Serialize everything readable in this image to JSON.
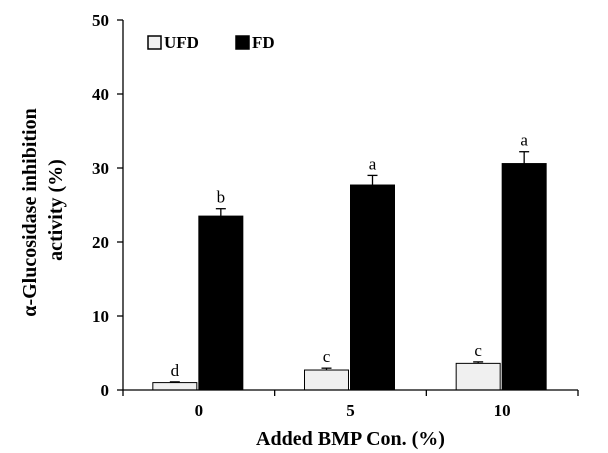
{
  "chart_data": {
    "type": "bar",
    "title": "",
    "xlabel": "Added BMP Con. (%)",
    "ylabel_line1": "α-Glucosidase inhibition",
    "ylabel_line2": "activity (%)",
    "ylim": [
      0,
      50
    ],
    "yticks": [
      0,
      10,
      20,
      30,
      40,
      50
    ],
    "categories": [
      "0",
      "5",
      "10"
    ],
    "legend_position": "top-left",
    "grid": false,
    "series": [
      {
        "name": "UFD",
        "color": "#f0f0f0",
        "values": [
          1.0,
          2.7,
          3.6
        ],
        "errors": [
          0.1,
          0.25,
          0.2
        ],
        "labels": [
          "d",
          "c",
          "c"
        ]
      },
      {
        "name": "FD",
        "color": "#000000",
        "values": [
          23.5,
          27.7,
          30.6
        ],
        "errors": [
          1.0,
          1.3,
          1.6
        ],
        "labels": [
          "b",
          "a",
          "a"
        ]
      }
    ]
  }
}
